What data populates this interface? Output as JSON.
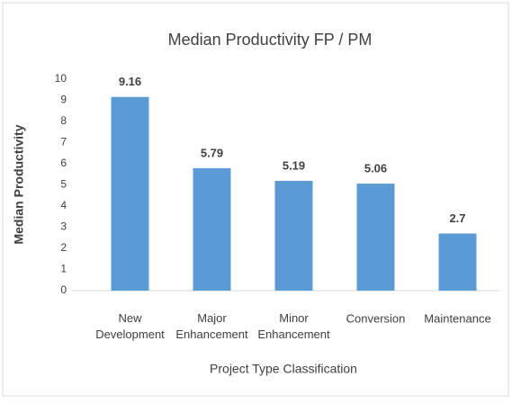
{
  "chart_data": {
    "type": "bar",
    "title": "Median Productivity FP / PM",
    "x_label": "Project Type Classification",
    "y_label": "Median Productivity",
    "categories": [
      "New Development",
      "Major Enhancement",
      "Minor Enhancement",
      "Conversion",
      "Maintenance"
    ],
    "values": [
      9.16,
      5.79,
      5.19,
      5.06,
      2.7
    ],
    "color": "#5b9bd5",
    "ylim": [
      0,
      10
    ],
    "yticks": [
      0,
      1,
      2,
      3,
      4,
      5,
      6,
      7,
      8,
      9,
      10
    ],
    "grid": false
  }
}
